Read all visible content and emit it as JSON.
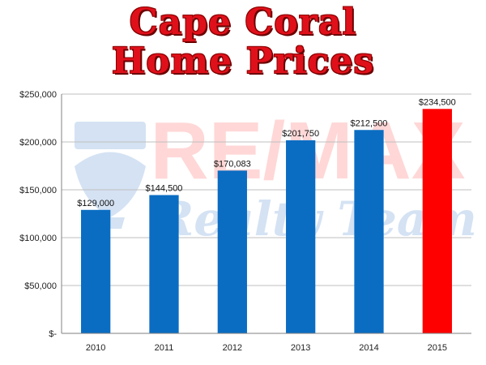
{
  "title_lines": [
    "Cape Coral",
    "Home Prices"
  ],
  "watermark": {
    "brand": "RE/MAX",
    "tagline": "Realty Team"
  },
  "colors": {
    "bar": "#0a6dc2",
    "highlight": "#ff0000",
    "title": "#e0101a",
    "grid": "#bfbfbf"
  },
  "chart_data": {
    "type": "bar",
    "title": "Cape Coral Home Prices",
    "xlabel": "",
    "ylabel": "",
    "categories": [
      "2010",
      "2011",
      "2012",
      "2013",
      "2014",
      "2015"
    ],
    "values": [
      129000,
      144500,
      170083,
      201750,
      212500,
      234500
    ],
    "value_labels": [
      "$129,000",
      "$144,500",
      "$170,083",
      "$201,750",
      "$212,500",
      "$234,500"
    ],
    "highlighted_category": "2015",
    "ylim": [
      0,
      250000
    ],
    "yticks": [
      0,
      50000,
      100000,
      150000,
      200000,
      250000
    ],
    "ytick_labels": [
      "$-",
      "$50,000",
      "$100,000",
      "$150,000",
      "$200,000",
      "$250,000"
    ],
    "grid": true,
    "legend": "none"
  }
}
